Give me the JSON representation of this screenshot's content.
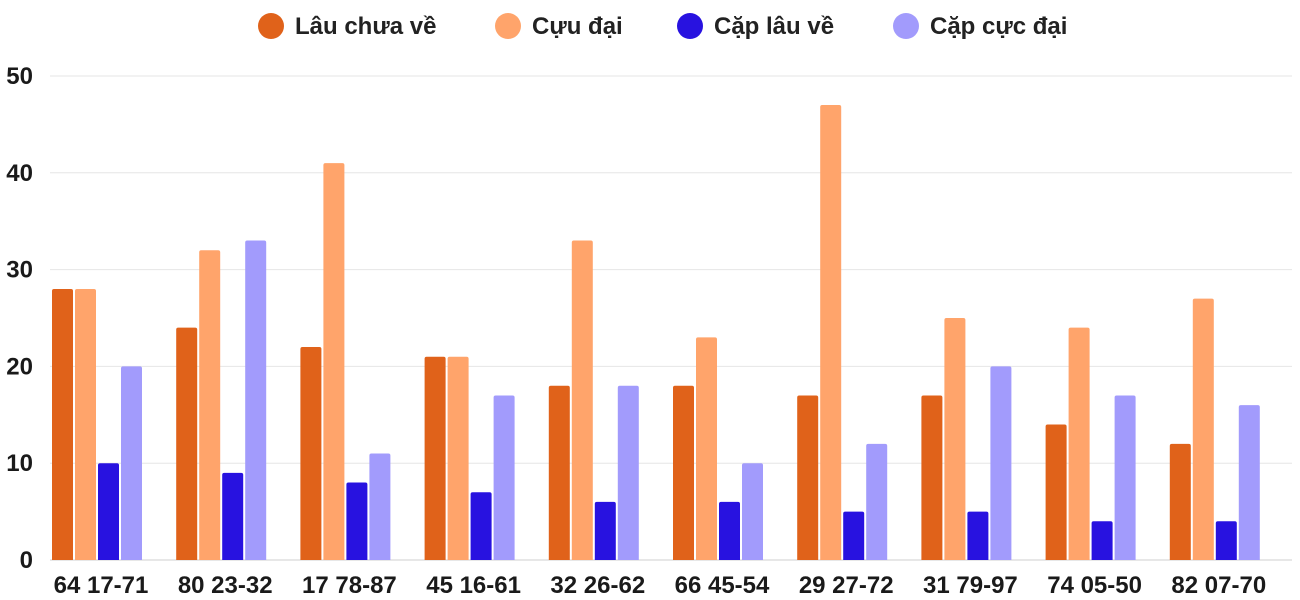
{
  "chart_data": {
    "type": "bar",
    "title": "",
    "xlabel": "",
    "ylabel": "",
    "ylim": [
      0,
      50
    ],
    "yticks": [
      0,
      10,
      20,
      30,
      40,
      50
    ],
    "grid": true,
    "legend_position": "top",
    "categories": [
      "64 17-71",
      "80 23-32",
      "17 78-87",
      "45 16-61",
      "32 26-62",
      "66 45-54",
      "29 27-72",
      "31 79-97",
      "74 05-50",
      "82 07-70"
    ],
    "series": [
      {
        "name": "Lâu chưa về",
        "color": "#e0621a",
        "values": [
          28,
          24,
          22,
          21,
          18,
          18,
          17,
          17,
          14,
          12
        ]
      },
      {
        "name": "Cựu đại",
        "color": "#ffa46b",
        "values": [
          28,
          32,
          41,
          21,
          33,
          23,
          47,
          25,
          24,
          27
        ]
      },
      {
        "name": "Cặp lâu về",
        "color": "#2812e0",
        "values": [
          10,
          9,
          8,
          7,
          6,
          6,
          5,
          5,
          4,
          4
        ]
      },
      {
        "name": "Cặp cực đại",
        "color": "#a29bfc",
        "values": [
          20,
          33,
          11,
          17,
          18,
          10,
          12,
          20,
          17,
          16
        ]
      }
    ]
  }
}
